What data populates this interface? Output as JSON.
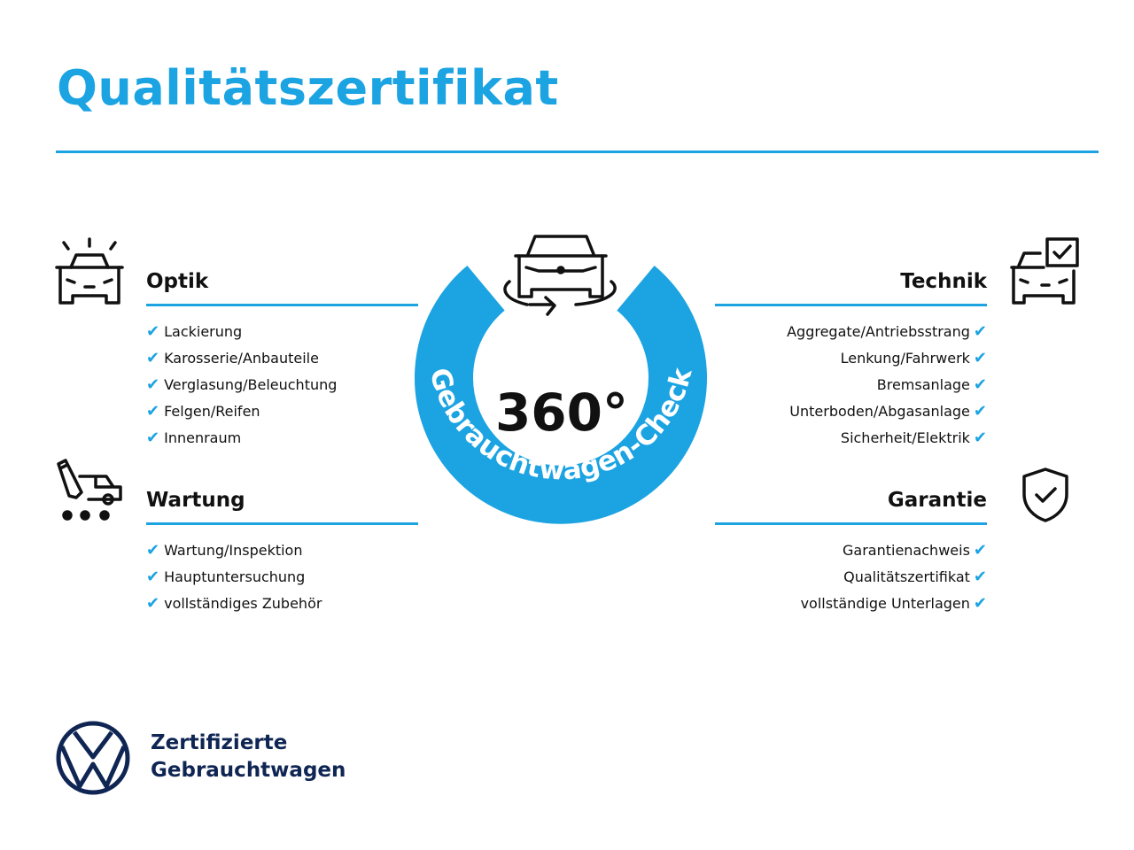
{
  "title": "Qualitätszertifikat",
  "colors": {
    "accent": "#1ba3e2",
    "navy": "#0f2553",
    "text": "#111111"
  },
  "badge": {
    "degrees": "360°",
    "ring_text": "Gebrauchtwagen-Check",
    "icon": "car-rotate-icon"
  },
  "sections": {
    "optik": {
      "heading": "Optik",
      "icon": "car-lights-icon",
      "items": [
        "Lackierung",
        "Karosserie/Anbauteile",
        "Verglasung/Beleuchtung",
        "Felgen/Reifen",
        "Innenraum"
      ]
    },
    "wartung": {
      "heading": "Wartung",
      "icon": "maintenance-cart-icon",
      "items": [
        "Wartung/Inspektion",
        "Hauptuntersuchung",
        "vollständiges Zubehör"
      ]
    },
    "technik": {
      "heading": "Technik",
      "icon": "car-checklist-icon",
      "items": [
        "Aggregate/Antriebsstrang",
        "Lenkung/Fahrwerk",
        "Bremsanlage",
        "Unterboden/Abgasanlage",
        "Sicherheit/Elektrik"
      ]
    },
    "garantie": {
      "heading": "Garantie",
      "icon": "shield-check-icon",
      "items": [
        "Garantienachweis",
        "Qualitätszertifikat",
        "vollständige Unterlagen"
      ]
    }
  },
  "check_mark": "✔",
  "footer": {
    "line1": "Zertifizierte",
    "line2": "Gebrauchtwagen",
    "logo": "vw-logo"
  }
}
